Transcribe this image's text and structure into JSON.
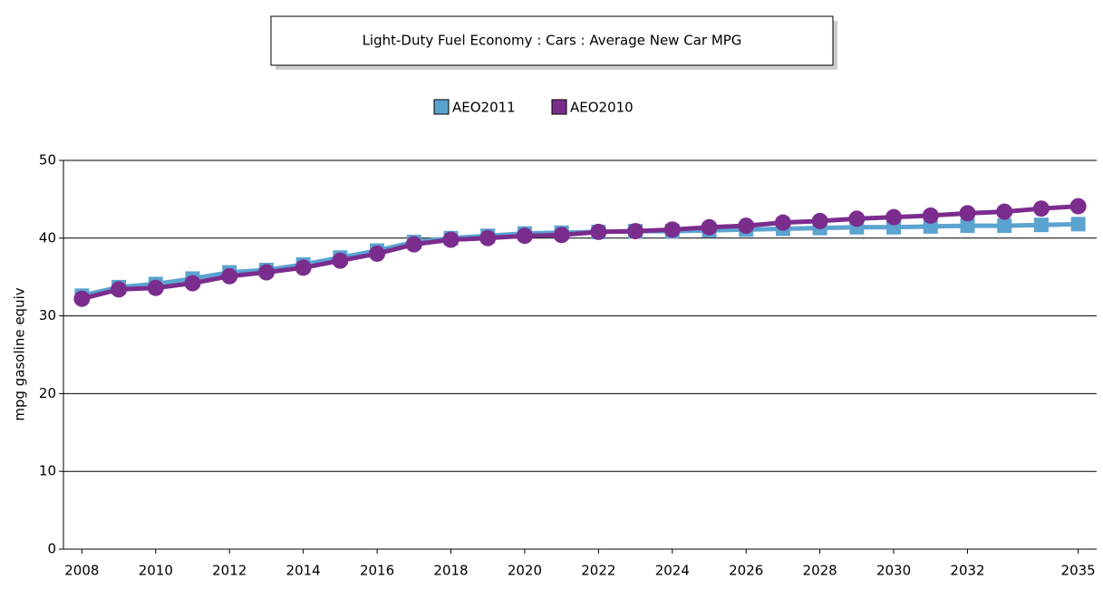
{
  "chart_data": {
    "type": "line",
    "title": "Light-Duty Fuel Economy : Cars : Average New Car MPG",
    "y_label": "mpg gasoline equiv",
    "x": [
      2008,
      2009,
      2010,
      2011,
      2012,
      2013,
      2014,
      2015,
      2016,
      2017,
      2018,
      2019,
      2020,
      2021,
      2022,
      2023,
      2024,
      2025,
      2026,
      2027,
      2028,
      2029,
      2030,
      2031,
      2032,
      2033,
      2034,
      2035
    ],
    "series": [
      {
        "name": "AEO2011",
        "color": "#5ba3d0",
        "marker": "square",
        "values": [
          32.6,
          33.7,
          34.1,
          34.8,
          35.6,
          35.9,
          36.6,
          37.5,
          38.4,
          39.5,
          40.0,
          40.3,
          40.6,
          40.7,
          40.8,
          40.9,
          40.9,
          41.0,
          41.1,
          41.2,
          41.3,
          41.4,
          41.4,
          41.5,
          41.6,
          41.6,
          41.7,
          41.8
        ]
      },
      {
        "name": "AEO2010",
        "color": "#7b2d8e",
        "marker": "circle",
        "values": [
          32.2,
          33.4,
          33.6,
          34.2,
          35.1,
          35.6,
          36.2,
          37.1,
          38.0,
          39.2,
          39.8,
          40.0,
          40.3,
          40.4,
          40.8,
          40.9,
          41.1,
          41.4,
          41.6,
          42.0,
          42.2,
          42.5,
          42.7,
          42.9,
          43.2,
          43.4,
          43.8,
          44.1
        ]
      }
    ],
    "xlim": [
      2007.5,
      2035.5
    ],
    "xticks": [
      2008,
      2010,
      2012,
      2014,
      2016,
      2018,
      2020,
      2022,
      2024,
      2026,
      2028,
      2030,
      2032,
      2035
    ],
    "ylim": [
      0,
      50
    ],
    "yticks": [
      0,
      10,
      20,
      30,
      40,
      50
    ],
    "grid": true,
    "legend": "top"
  }
}
